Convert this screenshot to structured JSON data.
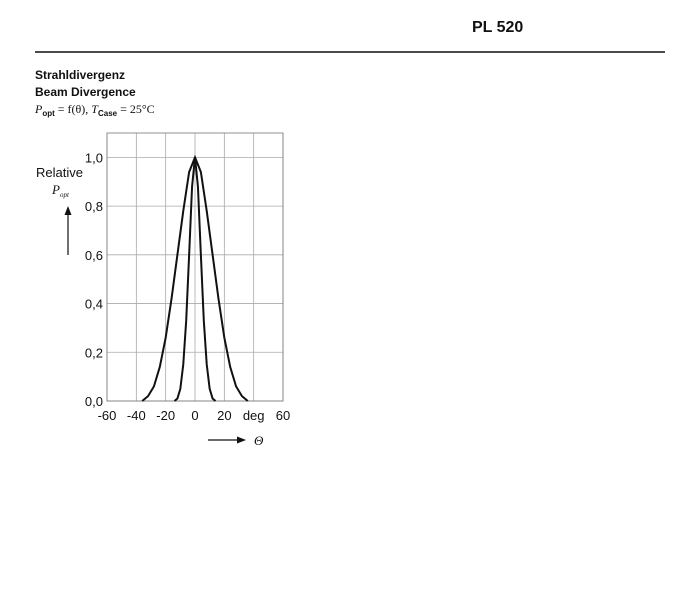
{
  "header": {
    "product": "PL 520"
  },
  "chart_data": {
    "type": "line",
    "title": "Strahldivergenz",
    "subtitle": "Beam Divergence",
    "formula": [
      "P",
      "opt",
      " = f(θ), ",
      "T",
      "Case",
      " = 25°C"
    ],
    "y_label": [
      "Relative",
      "P",
      "opt"
    ],
    "x_label": "Θ",
    "xlim": [
      -60,
      60
    ],
    "xticks": [
      -60,
      -40,
      -20,
      0,
      20,
      {
        "value": 40,
        "label": "deg"
      },
      60
    ],
    "ylim": [
      0,
      1.1
    ],
    "yticks": [
      {
        "value": 0,
        "label": "0,0"
      },
      {
        "value": 0.2,
        "label": "0,2"
      },
      {
        "value": 0.4,
        "label": "0,4"
      },
      {
        "value": 0.6,
        "label": "0,6"
      },
      {
        "value": 0.8,
        "label": "0,8"
      },
      {
        "value": 1.0,
        "label": "1,0"
      }
    ],
    "grid": true,
    "series": [
      {
        "color": "#111111",
        "x": [
          -36,
          -32,
          -28,
          -24,
          -20,
          -16,
          -12,
          -8,
          -4,
          0,
          4,
          8,
          12,
          16,
          20,
          24,
          28,
          32,
          36
        ],
        "values": [
          0,
          0.02,
          0.06,
          0.14,
          0.26,
          0.42,
          0.6,
          0.78,
          0.94,
          1.0,
          0.94,
          0.78,
          0.6,
          0.42,
          0.26,
          0.14,
          0.06,
          0.02,
          0
        ]
      },
      {
        "color": "#111111",
        "x": [
          -14,
          -12,
          -10,
          -8,
          -6,
          -4,
          -2,
          0,
          2,
          4,
          6,
          8,
          10,
          12,
          14
        ],
        "values": [
          0,
          0.01,
          0.05,
          0.15,
          0.33,
          0.6,
          0.88,
          1.0,
          0.88,
          0.6,
          0.33,
          0.15,
          0.05,
          0.01,
          0
        ]
      }
    ]
  }
}
